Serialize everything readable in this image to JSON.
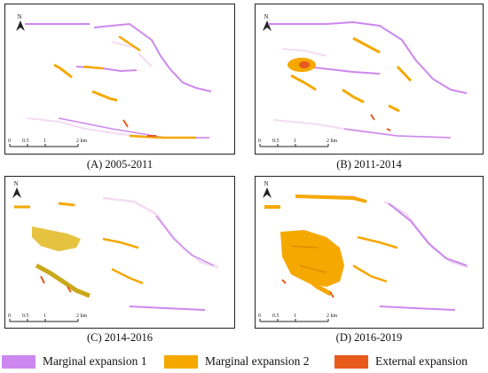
{
  "panels": [
    {
      "id": "A",
      "caption": "(A) 2005-2011"
    },
    {
      "id": "B",
      "caption": "(B) 2011-2014"
    },
    {
      "id": "C",
      "caption": "(C) 2014-2016"
    },
    {
      "id": "D",
      "caption": "(D) 2016-2019"
    }
  ],
  "north_label": "N",
  "scalebar": {
    "ticks": [
      "0",
      "0.5",
      "1",
      "2 km"
    ]
  },
  "legend": [
    {
      "label": "Marginal expansion 1",
      "color": "#cc88ee"
    },
    {
      "label": "Marginal expansion 2",
      "color": "#f5a800"
    },
    {
      "label": "External expansion",
      "color": "#e85a1c"
    }
  ],
  "colors": {
    "marginal1": "#cc88ee",
    "marginal2": "#f5a800",
    "external": "#e85a1c",
    "existing": "#f3dcf3"
  }
}
